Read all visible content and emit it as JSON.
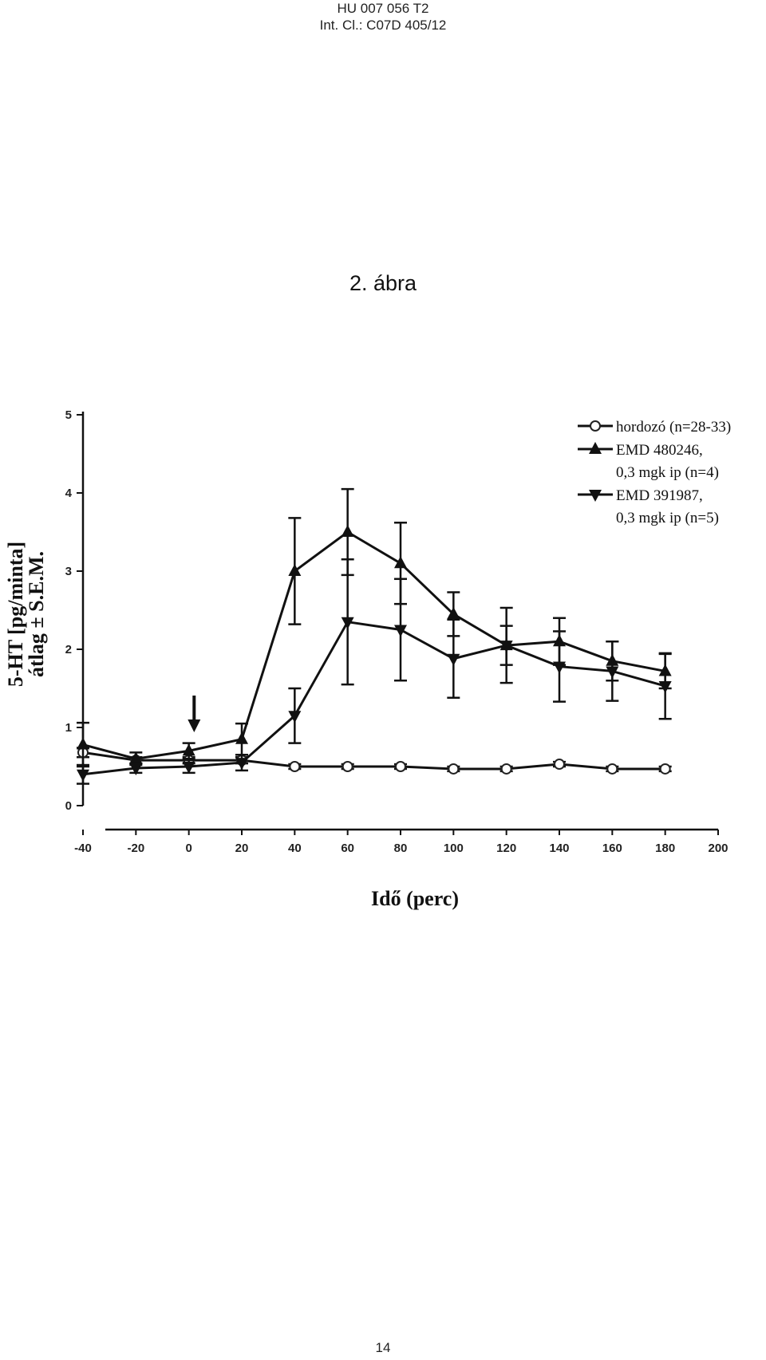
{
  "header": {
    "patent_number": "HU 007 056 T2",
    "classification": "Int. Cl.: C07D 405/12"
  },
  "figure_title": "2. ábra",
  "page_number": "14",
  "chart_data": {
    "type": "line",
    "xlabel": "Idő (perc)",
    "ylabel_line1": "5-HT [pg/minta]",
    "ylabel_line2": "átlag ± S.E.M.",
    "xlim": [
      -40,
      200
    ],
    "ylim": [
      0,
      5
    ],
    "x_ticks": [
      "-40",
      "-20",
      "0",
      "20",
      "40",
      "60",
      "80",
      "100",
      "120",
      "140",
      "160",
      "180",
      "200"
    ],
    "y_ticks": [
      "0",
      "1",
      "2",
      "3",
      "4",
      "5"
    ],
    "arrow_at_x": 2,
    "legend_position": "top-right",
    "x": [
      -40,
      -20,
      0,
      20,
      40,
      60,
      80,
      100,
      120,
      140,
      160,
      180
    ],
    "series": [
      {
        "name": "hordozó (n=28-33)",
        "marker": "circle-open",
        "values": [
          0.68,
          0.58,
          0.58,
          0.58,
          0.5,
          0.5,
          0.5,
          0.47,
          0.47,
          0.53,
          0.47,
          0.47
        ],
        "errors": [
          0.06,
          0.04,
          0.04,
          0.04,
          0.03,
          0.03,
          0.03,
          0.03,
          0.03,
          0.03,
          0.03,
          0.03
        ]
      },
      {
        "name_line1": "EMD 480246,",
        "name_line2": "0,3 mgk ip (n=4)",
        "marker": "triangle-up",
        "values": [
          0.78,
          0.6,
          0.7,
          0.85,
          3.0,
          3.5,
          3.1,
          2.45,
          2.05,
          2.1,
          1.85,
          1.72
        ],
        "errors": [
          0.28,
          0.08,
          0.1,
          0.2,
          0.68,
          0.55,
          0.52,
          0.28,
          0.48,
          0.3,
          0.25,
          0.22
        ]
      },
      {
        "name_line1": "EMD 391987,",
        "name_line2": "0,3 mgk ip (n=5)",
        "marker": "triangle-down",
        "values": [
          0.4,
          0.48,
          0.5,
          0.55,
          1.15,
          2.35,
          2.25,
          1.88,
          2.05,
          1.78,
          1.72,
          1.53
        ],
        "errors": [
          0.12,
          0.06,
          0.08,
          0.1,
          0.35,
          0.8,
          0.65,
          0.5,
          0.25,
          0.45,
          0.38,
          0.42
        ]
      }
    ]
  }
}
